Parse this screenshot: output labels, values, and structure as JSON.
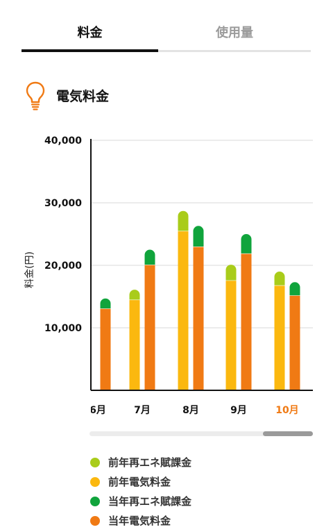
{
  "tabs": [
    {
      "label": "料金",
      "active": true
    },
    {
      "label": "使用量",
      "active": false
    }
  ],
  "section": {
    "title": "電気料金",
    "icon": "lightbulb-icon"
  },
  "chart_data": {
    "type": "bar",
    "ylabel": "料金(円)",
    "ylim": [
      0,
      40000
    ],
    "yticks": [
      10000,
      20000,
      30000,
      40000
    ],
    "ytick_labels": [
      "10,000",
      "20,000",
      "30,000",
      "40,000"
    ],
    "grid": true,
    "categories": [
      "6月",
      "7月",
      "8月",
      "9月",
      "10月"
    ],
    "category_labels": [
      "6月",
      "7月",
      "8月",
      "9月",
      "10月"
    ],
    "active_category": "10月",
    "first_category_clipped": true,
    "groups": [
      {
        "name": "前年",
        "stack": [
          "前年電気料金",
          "前年再エネ賦課金"
        ]
      },
      {
        "name": "当年",
        "stack": [
          "当年電気料金",
          "当年再エネ賦課金"
        ]
      }
    ],
    "series": [
      {
        "name": "前年電気料金",
        "group": "前年",
        "color": "#fbb80f",
        "values": [
          null,
          14500,
          25500,
          17600,
          16800
        ]
      },
      {
        "name": "前年再エネ賦課金",
        "group": "前年",
        "color": "#a9cc1a",
        "values": [
          null,
          1600,
          3200,
          2500,
          2200
        ]
      },
      {
        "name": "当年電気料金",
        "group": "当年",
        "color": "#f07a14",
        "values": [
          13100,
          20100,
          23000,
          21900,
          15200
        ]
      },
      {
        "name": "当年再エネ賦課金",
        "group": "当年",
        "color": "#10a43c",
        "values": [
          1600,
          2400,
          3300,
          3100,
          2100
        ]
      }
    ]
  },
  "legend": [
    {
      "label": "前年再エネ賦課金",
      "color": "#a9cc1a"
    },
    {
      "label": "前年電気料金",
      "color": "#fbb80f"
    },
    {
      "label": "当年再エネ賦課金",
      "color": "#10a43c"
    },
    {
      "label": "当年電気料金",
      "color": "#f07a14"
    }
  ],
  "colors": {
    "accent": "#f07a14",
    "scroll_thumb": "#9a9a9a"
  }
}
